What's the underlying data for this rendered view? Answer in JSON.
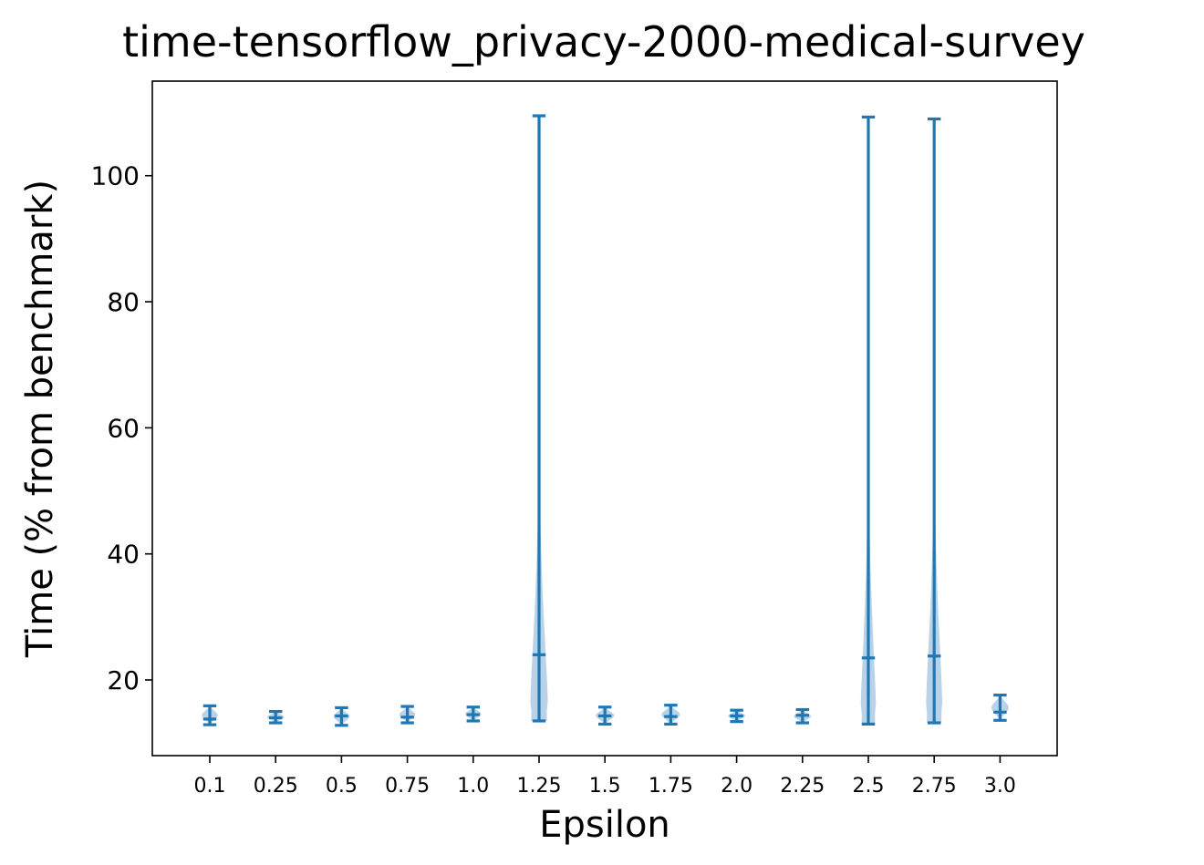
{
  "chart_data": {
    "type": "violin",
    "title": "time-tensorflow_privacy-2000-medical-survey",
    "xlabel": "Epsilon",
    "ylabel": "Time (% from benchmark)",
    "ylim": [
      8,
      115
    ],
    "yticks": [
      20,
      40,
      60,
      80,
      100
    ],
    "categories": [
      "0.1",
      "0.25",
      "0.5",
      "0.75",
      "1.0",
      "1.25",
      "1.5",
      "1.75",
      "2.0",
      "2.25",
      "2.5",
      "2.75",
      "3.0"
    ],
    "series": [
      {
        "min": [
          12.9,
          13.2,
          12.8,
          13.2,
          13.5,
          13.5,
          13.0,
          13.0,
          13.4,
          13.2,
          13.0,
          13.2,
          13.6
        ],
        "mean": [
          13.8,
          14.0,
          14.3,
          14.1,
          14.5,
          24.0,
          14.3,
          14.2,
          14.3,
          14.4,
          23.5,
          23.8,
          14.9
        ],
        "max": [
          15.9,
          15.0,
          15.6,
          15.8,
          15.7,
          109.5,
          15.7,
          16.0,
          15.2,
          15.3,
          109.3,
          109.0,
          17.6
        ],
        "violin_half_width": [
          0.12,
          0.13,
          0.12,
          0.12,
          0.12,
          0.14,
          0.14,
          0.14,
          0.13,
          0.13,
          0.12,
          0.13,
          0.13
        ]
      }
    ],
    "colors": {
      "line": "#1f77b4",
      "fill": "#b9d2e7",
      "frame": "#000000"
    },
    "grid": false
  }
}
